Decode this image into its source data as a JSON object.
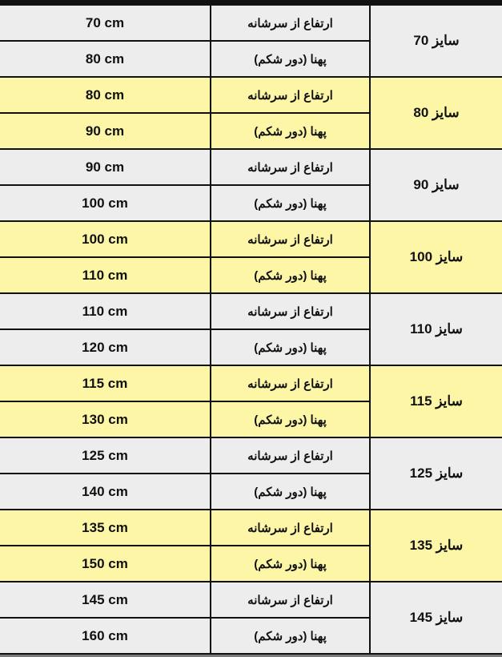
{
  "labels": {
    "height": "ارتفاع از سرشانه",
    "width": "پهنا (دور شکم)"
  },
  "colors": {
    "gray_row": "#ededed",
    "yellow_row": "#fdf6a6",
    "border": "#111111"
  },
  "rows": [
    {
      "size": "سایز 70",
      "height": "70 cm",
      "width": "80 cm",
      "color": "gray"
    },
    {
      "size": "سایز 80",
      "height": "80 cm",
      "width": "90 cm",
      "color": "yellow"
    },
    {
      "size": "سایز 90",
      "height": "90 cm",
      "width": "100 cm",
      "color": "gray"
    },
    {
      "size": "سایز 100",
      "height": "100 cm",
      "width": "110 cm",
      "color": "yellow"
    },
    {
      "size": "سایز 110",
      "height": "110 cm",
      "width": "120 cm",
      "color": "gray"
    },
    {
      "size": "سایز 115",
      "height": "115 cm",
      "width": "130 cm",
      "color": "yellow"
    },
    {
      "size": "سایز 125",
      "height": "125 cm",
      "width": "140 cm",
      "color": "gray"
    },
    {
      "size": "سایز 135",
      "height": "135 cm",
      "width": "150 cm",
      "color": "yellow"
    },
    {
      "size": "سایز 145",
      "height": "145 cm",
      "width": "160 cm",
      "color": "gray"
    }
  ]
}
